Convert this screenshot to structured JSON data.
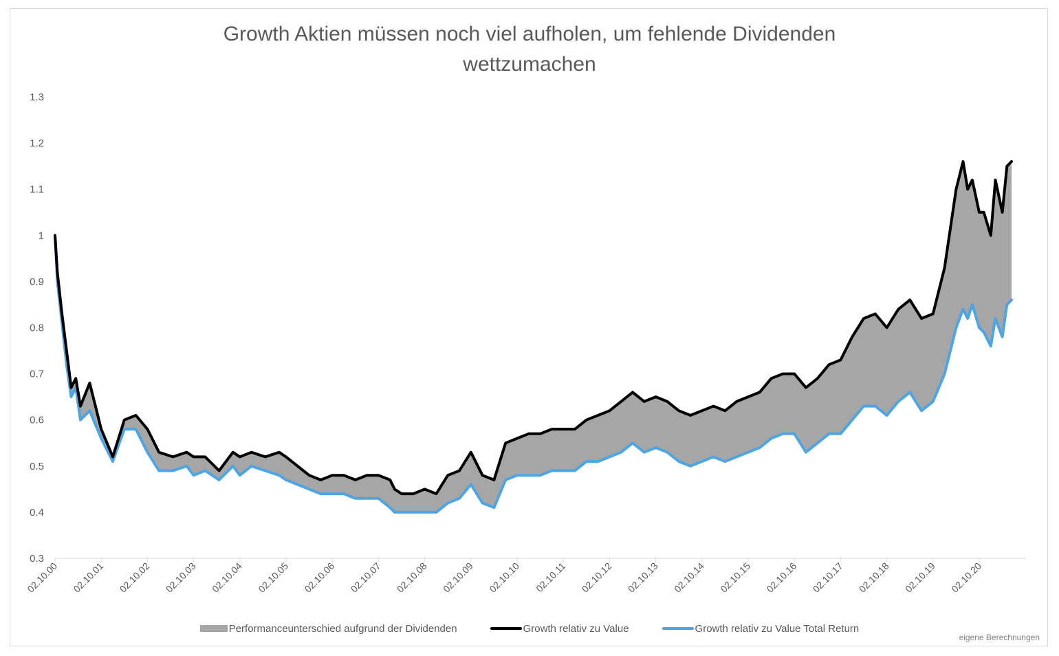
{
  "chart_data": {
    "type": "area",
    "title": "Growth Aktien müssen noch viel aufholen, um fehlende Dividenden wettzumachen",
    "title_lines": [
      "Growth Aktien müssen noch viel aufholen, um fehlende Dividenden",
      "wettzumachen"
    ],
    "ylim": [
      0.3,
      1.3
    ],
    "yticks": [
      0.3,
      0.4,
      0.5,
      0.6,
      0.7,
      0.8,
      0.9,
      1,
      1.1,
      1.2,
      1.3
    ],
    "ytick_labels": [
      "0.3",
      "0.4",
      "0.5",
      "0.6",
      "0.7",
      "0.8",
      "0.9",
      "1",
      "1.1",
      "1.2",
      "1.3"
    ],
    "categories": [
      "02.10.00",
      "02.10.01",
      "02.10.02",
      "02.10.03",
      "02.10.04",
      "02.10.05",
      "02.10.06",
      "02.10.07",
      "02.10.08",
      "02.10.09",
      "02.10.10",
      "02.10.11",
      "02.10.12",
      "02.10.13",
      "02.10.14",
      "02.10.15",
      "02.10.16",
      "02.10.17",
      "02.10.18",
      "02.10.19",
      "02.10.20"
    ],
    "x": [
      2000.75,
      2000.8,
      2000.9,
      2001.0,
      2001.1,
      2001.2,
      2001.3,
      2001.5,
      2001.75,
      2002.0,
      2002.25,
      2002.5,
      2002.75,
      2003.0,
      2003.3,
      2003.6,
      2003.75,
      2004.0,
      2004.3,
      2004.6,
      2004.75,
      2005.0,
      2005.3,
      2005.6,
      2005.75,
      2006.0,
      2006.25,
      2006.5,
      2006.75,
      2007.0,
      2007.25,
      2007.5,
      2007.75,
      2008.0,
      2008.1,
      2008.25,
      2008.5,
      2008.75,
      2009.0,
      2009.25,
      2009.5,
      2009.75,
      2010.0,
      2010.25,
      2010.5,
      2010.75,
      2011.0,
      2011.25,
      2011.5,
      2011.75,
      2012.0,
      2012.25,
      2012.5,
      2012.75,
      2013.0,
      2013.25,
      2013.5,
      2013.75,
      2014.0,
      2014.25,
      2014.5,
      2014.75,
      2015.0,
      2015.25,
      2015.5,
      2015.75,
      2016.0,
      2016.25,
      2016.5,
      2016.75,
      2017.0,
      2017.25,
      2017.5,
      2017.75,
      2018.0,
      2018.25,
      2018.5,
      2018.75,
      2019.0,
      2019.25,
      2019.5,
      2019.75,
      2020.0,
      2020.25,
      2020.4,
      2020.5,
      2020.6,
      2020.75,
      2020.85,
      2021.0,
      2021.1,
      2021.25,
      2021.35,
      2021.45
    ],
    "series": [
      {
        "name": "Growth relativ zu Value",
        "color": "#000000",
        "values": [
          1.0,
          0.92,
          0.83,
          0.75,
          0.67,
          0.69,
          0.63,
          0.68,
          0.58,
          0.52,
          0.6,
          0.61,
          0.58,
          0.53,
          0.52,
          0.53,
          0.52,
          0.52,
          0.49,
          0.53,
          0.52,
          0.53,
          0.52,
          0.53,
          0.52,
          0.5,
          0.48,
          0.47,
          0.48,
          0.48,
          0.47,
          0.48,
          0.48,
          0.47,
          0.45,
          0.44,
          0.44,
          0.45,
          0.44,
          0.48,
          0.49,
          0.53,
          0.48,
          0.47,
          0.55,
          0.56,
          0.57,
          0.57,
          0.58,
          0.58,
          0.58,
          0.6,
          0.61,
          0.62,
          0.64,
          0.66,
          0.64,
          0.65,
          0.64,
          0.62,
          0.61,
          0.62,
          0.63,
          0.62,
          0.64,
          0.65,
          0.66,
          0.69,
          0.7,
          0.7,
          0.67,
          0.69,
          0.72,
          0.73,
          0.78,
          0.82,
          0.83,
          0.8,
          0.84,
          0.86,
          0.82,
          0.83,
          0.93,
          1.1,
          1.16,
          1.1,
          1.12,
          1.05,
          1.05,
          1.0,
          1.12,
          1.05,
          1.15,
          1.16
        ]
      },
      {
        "name": "Growth relativ zu Value Total Return",
        "color": "#4ea5e4",
        "values": [
          1.0,
          0.9,
          0.81,
          0.72,
          0.65,
          0.67,
          0.6,
          0.62,
          0.56,
          0.51,
          0.58,
          0.58,
          0.53,
          0.49,
          0.49,
          0.5,
          0.48,
          0.49,
          0.47,
          0.5,
          0.48,
          0.5,
          0.49,
          0.48,
          0.47,
          0.46,
          0.45,
          0.44,
          0.44,
          0.44,
          0.43,
          0.43,
          0.43,
          0.41,
          0.4,
          0.4,
          0.4,
          0.4,
          0.4,
          0.42,
          0.43,
          0.46,
          0.42,
          0.41,
          0.47,
          0.48,
          0.48,
          0.48,
          0.49,
          0.49,
          0.49,
          0.51,
          0.51,
          0.52,
          0.53,
          0.55,
          0.53,
          0.54,
          0.53,
          0.51,
          0.5,
          0.51,
          0.52,
          0.51,
          0.52,
          0.53,
          0.54,
          0.56,
          0.57,
          0.57,
          0.53,
          0.55,
          0.57,
          0.57,
          0.6,
          0.63,
          0.63,
          0.61,
          0.64,
          0.66,
          0.62,
          0.64,
          0.7,
          0.8,
          0.84,
          0.82,
          0.85,
          0.8,
          0.79,
          0.76,
          0.82,
          0.78,
          0.85,
          0.86
        ]
      }
    ],
    "area_series": {
      "name": "Performanceunterschied aufgrund der Dividenden",
      "color": "#a6a6a6",
      "description": "filled band between the two lines"
    },
    "legend": {
      "position": "bottom",
      "items": [
        "Performanceunterschied aufgrund der Dividenden",
        "Growth relativ zu Value",
        "Growth relativ zu Value Total Return"
      ]
    },
    "grid": false,
    "note": "eigene Berechnungen"
  }
}
